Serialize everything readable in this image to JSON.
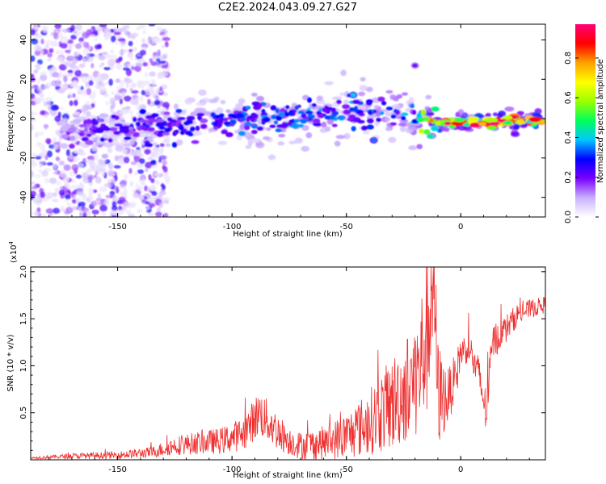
{
  "title": "C2E2.2024.043.09.27.G27",
  "chart_data": [
    {
      "type": "heatmap",
      "xlabel": "Height of straight line (km)",
      "ylabel": "Frequency (Hz)",
      "xlim": [
        -188,
        37
      ],
      "ylim": [
        -50,
        48
      ],
      "xticks": [
        -150,
        -100,
        -50,
        0
      ],
      "yticks": [
        -40,
        -20,
        0,
        20,
        40
      ],
      "colorbar": {
        "label": "Normalized spectral amplitude",
        "range": [
          0,
          0.97
        ],
        "ticks": [
          "0.0",
          "0.2",
          "0.4",
          "0.6",
          "0.8"
        ],
        "tick_values": [
          0.0,
          0.2,
          0.4,
          0.6,
          0.8
        ],
        "colors": [
          "#ffffff",
          "#c9b0ff",
          "#7a00ff",
          "#0000ff",
          "#00c8ff",
          "#00ff5a",
          "#9cff00",
          "#ffff00",
          "#ffa000",
          "#ff0000",
          "#ff0078"
        ]
      },
      "ridge": {
        "x": [
          -188,
          -160,
          -140,
          -120,
          -100,
          -80,
          -60,
          -40,
          -30,
          -20,
          -10,
          0,
          37
        ],
        "y": [
          -7,
          -6,
          -5,
          -3,
          -1,
          0,
          2,
          4,
          3,
          0,
          -2,
          -2,
          -1
        ],
        "peak_amplitude": [
          0.05,
          0.25,
          0.3,
          0.3,
          0.35,
          0.35,
          0.38,
          0.35,
          0.4,
          0.45,
          0.95,
          0.95,
          0.9
        ]
      },
      "features": [
        {
          "x": -20,
          "y": 27,
          "amplitude": 0.2
        },
        {
          "x": -47,
          "y": 12,
          "amplitude": 0.4
        },
        {
          "x": -38,
          "y": -11,
          "amplitude": 0.35
        }
      ]
    },
    {
      "type": "line",
      "xlabel": "Height of straight line (km)",
      "ylabel": "SNR (10 * v/v)",
      "scale_label": "(x10",
      "scale_exponent": "4",
      "scale_suffix": ")",
      "xlim": [
        -188,
        37
      ],
      "ylim": [
        0,
        20500
      ],
      "xticks": [
        -150,
        -100,
        -50,
        0
      ],
      "yticks": [
        5000,
        10000,
        15000,
        20000
      ],
      "ytick_labels": [
        "0.5",
        "1.0",
        "1.5",
        "2.0"
      ],
      "color": "#ee3030",
      "series": [
        {
          "x": [
            -188,
            -170,
            -150,
            -135,
            -125,
            -115,
            -105,
            -95,
            -88,
            -80,
            -75,
            -70,
            -60,
            -50,
            -40,
            -30,
            -22,
            -18,
            -14,
            -12,
            -10,
            -6,
            -2,
            0,
            4,
            6,
            8,
            11,
            14,
            20,
            25,
            30,
            37
          ],
          "y": [
            200,
            400,
            500,
            800,
            1500,
            1800,
            2000,
            2800,
            5000,
            3000,
            2000,
            1500,
            1800,
            2500,
            4000,
            6000,
            8000,
            9500,
            15000,
            20500,
            7000,
            6500,
            9000,
            11500,
            12000,
            10000,
            9000,
            5000,
            12500,
            14000,
            15500,
            16000,
            16500
          ],
          "noise": [
            100,
            300,
            400,
            600,
            1000,
            1200,
            1400,
            1800,
            2500,
            2000,
            1500,
            1500,
            1800,
            2500,
            3500,
            5000,
            6000,
            7000,
            10000,
            9000,
            6000,
            3000,
            2500,
            1800,
            1500,
            2000,
            2000,
            2500,
            2000,
            1500,
            1200,
            1000,
            900
          ]
        }
      ]
    }
  ]
}
